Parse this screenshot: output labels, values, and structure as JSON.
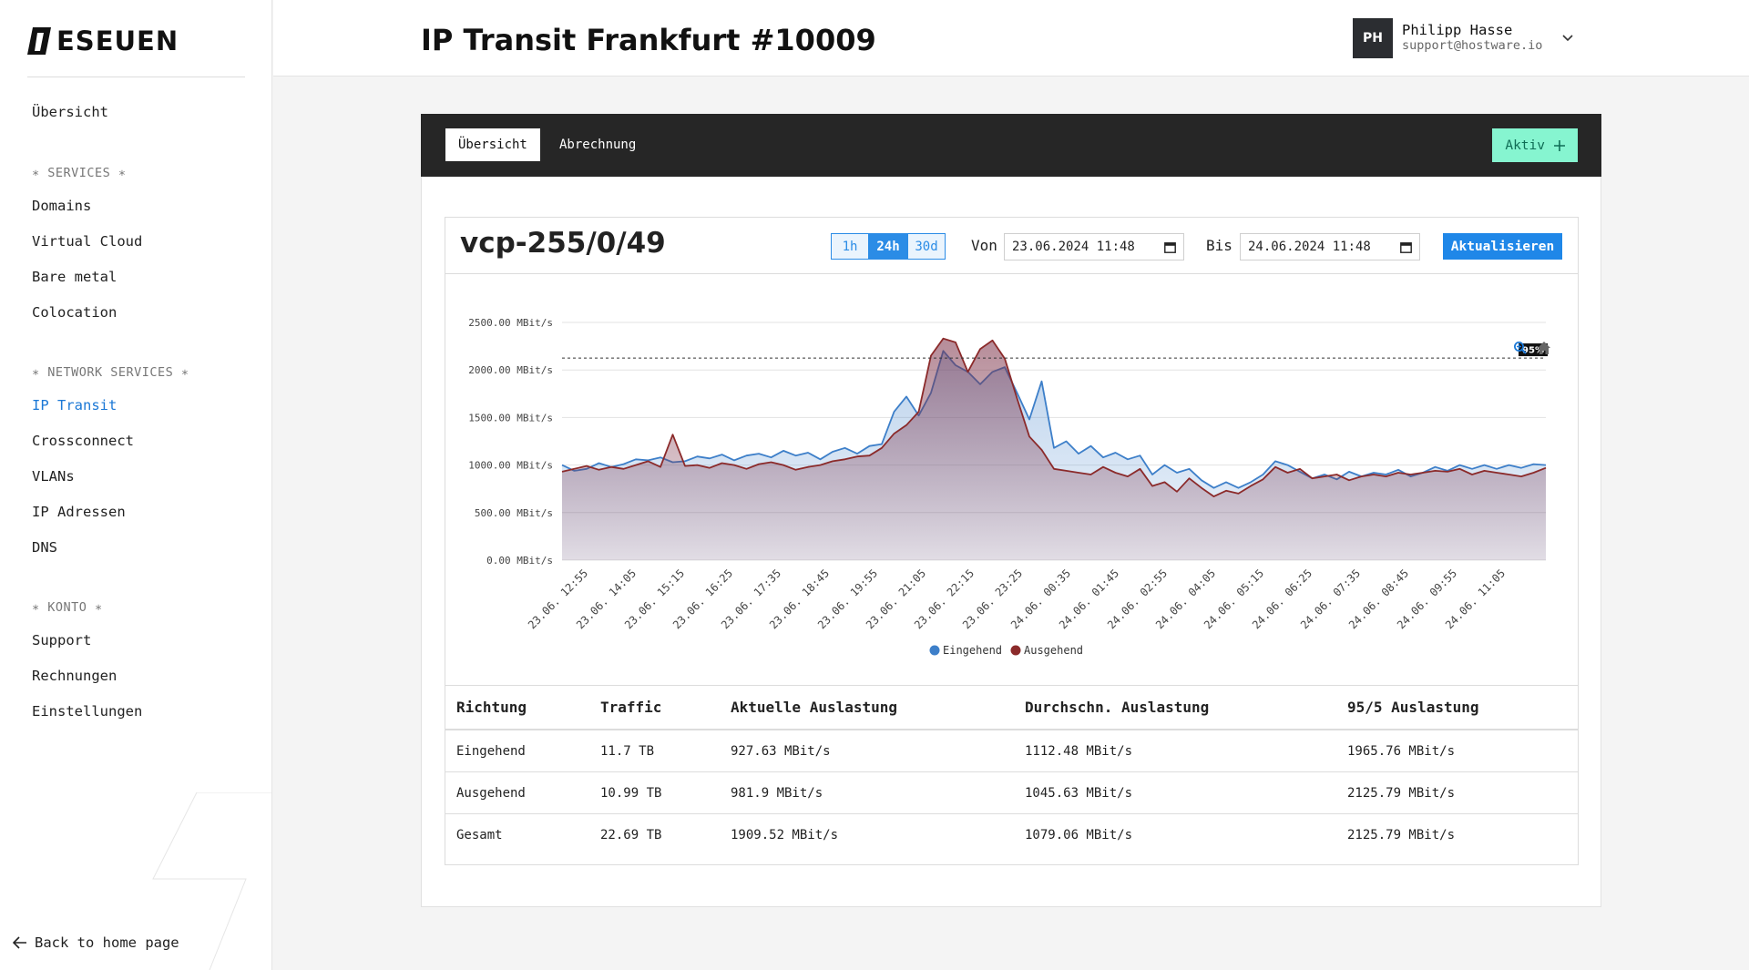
{
  "brand": {
    "name": "ESEUEN"
  },
  "sidebar": {
    "overview": "Übersicht",
    "sections": [
      {
        "title": "∗ SERVICES ∗",
        "items": [
          "Domains",
          "Virtual Cloud",
          "Bare metal",
          "Colocation"
        ]
      },
      {
        "title": "∗ NETWORK SERVICES ∗",
        "items": [
          "IP Transit",
          "Crossconnect",
          "VLANs",
          "IP Adressen",
          "DNS"
        ]
      },
      {
        "title": "∗ KONTO ∗",
        "items": [
          "Support",
          "Rechnungen",
          "Einstellungen"
        ]
      }
    ],
    "active_item": "IP Transit",
    "back_link": "Back to home page"
  },
  "header": {
    "title": "IP Transit Frankfurt #10009",
    "user": {
      "initials": "PH",
      "name": "Philipp Hasse",
      "email": "support@hostware.io"
    }
  },
  "tabs": [
    {
      "label": "Übersicht",
      "active": true
    },
    {
      "label": "Abrechnung",
      "active": false
    }
  ],
  "status_button": {
    "label": "Aktiv",
    "color": "#86f5d0"
  },
  "card": {
    "title": "vcp-255/0/49",
    "ranges": [
      "1h",
      "24h",
      "30d"
    ],
    "active_range": "24h",
    "from_label": "Von",
    "from_value": "23.06.2024 11:48",
    "to_label": "Bis",
    "to_value": "24.06.2024 11:48",
    "refresh_label": "Aktualisieren"
  },
  "chart_data": {
    "type": "area",
    "unit": "MBit/s",
    "y_ticks": [
      "0.00 MBit/s",
      "500.00 MBit/s",
      "1000.00 MBit/s",
      "1500.00 MBit/s",
      "2000.00 MBit/s",
      "2500.00 MBit/s"
    ],
    "ylim": [
      0,
      2500
    ],
    "x_ticks": [
      "23.06. 12:55",
      "23.06. 14:05",
      "23.06. 15:15",
      "23.06. 16:25",
      "23.06. 17:35",
      "23.06. 18:45",
      "23.06. 19:55",
      "23.06. 21:05",
      "23.06. 22:15",
      "23.06. 23:25",
      "24.06. 00:35",
      "24.06. 01:45",
      "24.06. 02:55",
      "24.06. 04:05",
      "24.06. 05:15",
      "24.06. 06:25",
      "24.06. 07:35",
      "24.06. 08:45",
      "24.06. 09:55",
      "24.06. 11:05"
    ],
    "percentile_line": {
      "value": 2125.79,
      "label": "95%"
    },
    "grid": true,
    "legend_position": "bottom",
    "series": [
      {
        "name": "Eingehend",
        "color": "#3d7fc9",
        "values": [
          1000,
          940,
          960,
          1020,
          980,
          1010,
          1060,
          1050,
          1080,
          1030,
          1040,
          1090,
          1070,
          1110,
          1050,
          1100,
          1120,
          1080,
          1150,
          1100,
          1130,
          1060,
          1140,
          1180,
          1120,
          1200,
          1220,
          1560,
          1720,
          1520,
          1760,
          2200,
          2050,
          1980,
          1850,
          1980,
          2030,
          1760,
          1480,
          1880,
          1180,
          1250,
          1120,
          1200,
          1080,
          1130,
          1060,
          1100,
          900,
          1000,
          920,
          960,
          840,
          760,
          820,
          760,
          820,
          900,
          1040,
          1000,
          930,
          860,
          900,
          850,
          930,
          880,
          920,
          900,
          950,
          880,
          920,
          980,
          940,
          1000,
          960,
          1000,
          960,
          1000,
          970,
          1010,
          1000
        ]
      },
      {
        "name": "Ausgehend",
        "color": "#8b2a2a",
        "values": [
          930,
          960,
          990,
          950,
          980,
          960,
          1000,
          1040,
          980,
          1320,
          990,
          1000,
          970,
          1020,
          1000,
          960,
          1010,
          1030,
          1000,
          950,
          980,
          1000,
          1040,
          1060,
          1090,
          1100,
          1180,
          1330,
          1420,
          1560,
          2150,
          2330,
          2290,
          1980,
          2220,
          2310,
          2120,
          1700,
          1300,
          1160,
          960,
          940,
          920,
          900,
          980,
          920,
          880,
          960,
          780,
          820,
          720,
          860,
          760,
          670,
          730,
          700,
          780,
          850,
          980,
          920,
          960,
          860,
          880,
          900,
          840,
          880,
          900,
          880,
          920,
          900,
          920,
          940,
          930,
          960,
          900,
          940,
          920,
          900,
          880,
          920,
          970
        ]
      }
    ]
  },
  "stats": {
    "headers": [
      "Richtung",
      "Traffic",
      "Aktuelle Auslastung",
      "Durchschn. Auslastung",
      "95/5 Auslastung"
    ],
    "rows": [
      [
        "Eingehend",
        "11.7 TB",
        "927.63 MBit/s",
        "1112.48 MBit/s",
        "1965.76 MBit/s"
      ],
      [
        "Ausgehend",
        "10.99 TB",
        "981.9 MBit/s",
        "1045.63 MBit/s",
        "2125.79 MBit/s"
      ],
      [
        "Gesamt",
        "22.69 TB",
        "1909.52 MBit/s",
        "1079.06 MBit/s",
        "2125.79 MBit/s"
      ]
    ]
  },
  "icons": [
    "logo-mark-icon",
    "chevron-down-icon",
    "plus-icon",
    "calendar-icon",
    "zoom-icon",
    "home-icon",
    "arrow-left-icon"
  ]
}
